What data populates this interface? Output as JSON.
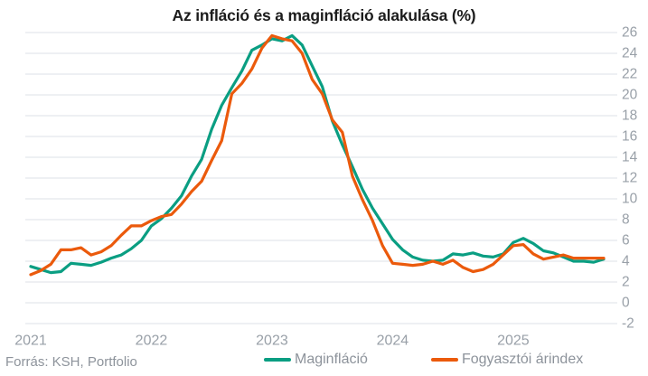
{
  "title": "Az infláció és a maginfláció alakulása (%)",
  "source": "Forrás: KSH, Portfolio",
  "colors": {
    "core": "#0a9e82",
    "cpi": "#eb5a0c",
    "grid": "#dce1e7",
    "axis_text": "#99a0a8",
    "title_text": "#1c1c1c",
    "muted_text": "#8d939b",
    "background": "#ffffff"
  },
  "chart_data": {
    "type": "line",
    "title": "Az infláció és a maginfláció alakulása (%)",
    "x_unit": "month",
    "x_start": "2021-01",
    "x_end": "2025-10",
    "x_tick_labels": [
      "2021",
      "2022",
      "2023",
      "2024",
      "2025"
    ],
    "y_ticks": [
      26,
      24,
      22,
      20,
      18,
      16,
      14,
      12,
      10,
      8,
      6,
      4,
      2,
      0,
      -2
    ],
    "ylim": [
      -2,
      26
    ],
    "grid": "horizontal",
    "legend_position": "bottom",
    "series": [
      {
        "name": "Maginfláció",
        "color": "#0a9e82",
        "values": [
          3.5,
          3.2,
          2.9,
          3.0,
          3.8,
          3.7,
          3.6,
          3.9,
          4.3,
          4.6,
          5.2,
          6.0,
          7.4,
          8.1,
          9.1,
          10.3,
          12.2,
          13.8,
          16.7,
          19.0,
          20.7,
          22.3,
          24.3,
          24.8,
          25.4,
          25.2,
          25.7,
          24.8,
          22.8,
          20.8,
          17.5,
          15.2,
          13.1,
          10.9,
          9.1,
          7.6,
          6.1,
          5.1,
          4.4,
          4.1,
          4.0,
          4.1,
          4.7,
          4.6,
          4.8,
          4.5,
          4.4,
          4.7,
          5.8,
          6.2,
          5.7,
          5.0,
          4.8,
          4.4,
          4.0,
          4.0,
          3.9,
          4.2
        ]
      },
      {
        "name": "Fogyasztói árindex",
        "color": "#eb5a0c",
        "values": [
          2.7,
          3.1,
          3.7,
          5.1,
          5.1,
          5.3,
          4.6,
          4.9,
          5.5,
          6.5,
          7.4,
          7.4,
          7.9,
          8.3,
          8.5,
          9.5,
          10.7,
          11.7,
          13.7,
          15.6,
          20.1,
          21.1,
          22.5,
          24.5,
          25.7,
          25.4,
          25.2,
          24.0,
          21.5,
          20.1,
          17.6,
          16.4,
          12.2,
          9.9,
          7.9,
          5.5,
          3.8,
          3.7,
          3.6,
          3.7,
          4.0,
          3.7,
          4.1,
          3.4,
          3.0,
          3.2,
          3.7,
          4.6,
          5.5,
          5.6,
          4.7,
          4.2,
          4.4,
          4.6,
          4.3,
          4.3,
          4.3,
          4.3
        ]
      }
    ]
  }
}
